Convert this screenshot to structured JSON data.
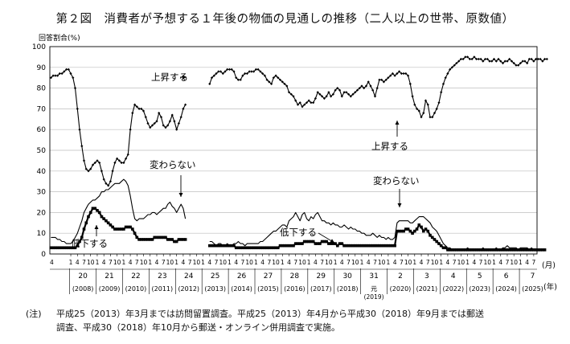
{
  "figure": {
    "title": "第２図　消費者が予想する１年後の物価の見通しの推移（二人以上の世帯、原数値）",
    "note_label": "(注)",
    "note_line1": "平成25（2013）年3月までは訪問留置調査。平成25（2013）年4月から平成30（2018）年9月までは郵送",
    "note_line2": "調査、平成30（2018）年10月から郵送・オンライン併用調査で実施。"
  },
  "colors": {
    "line": "#000000",
    "grid": "#bdbdbd",
    "axis": "#000000"
  },
  "chart_data": {
    "type": "line",
    "ylabel": "回答割合(%)",
    "ylim": [
      0,
      100
    ],
    "yticks": [
      0,
      10,
      20,
      30,
      40,
      50,
      60,
      70,
      80,
      90,
      100
    ],
    "x_unit": "(月)",
    "year_unit": "(年)",
    "month_ticks": [
      "1",
      "4",
      "7",
      "10"
    ],
    "grid": true,
    "x": {
      "start": "2007-04",
      "end": "2025-07",
      "step": "month"
    },
    "year_groups": [
      {
        "era": "20",
        "west": "(2008)"
      },
      {
        "era": "21",
        "west": "(2009)"
      },
      {
        "era": "22",
        "west": "(2010)"
      },
      {
        "era": "23",
        "west": "(2011)"
      },
      {
        "era": "24",
        "west": "(2012)"
      },
      {
        "era": "25",
        "west": "(2013)"
      },
      {
        "era": "26",
        "west": "(2014)"
      },
      {
        "era": "27",
        "west": "(2015)"
      },
      {
        "era": "28",
        "west": "(2016)"
      },
      {
        "era": "29",
        "west": "(2017)"
      },
      {
        "era": "30",
        "west": "(2018)"
      },
      {
        "era": "31",
        "west": "元",
        "west2": "(2019)"
      },
      {
        "era": "2",
        "west": "(2020)"
      },
      {
        "era": "3",
        "west": "(2021)"
      },
      {
        "era": "4",
        "west": "(2022)"
      },
      {
        "era": "5",
        "west": "(2023)"
      },
      {
        "era": "6",
        "west": "(2024)"
      },
      {
        "era": "7",
        "west": "(2025)"
      }
    ],
    "series": [
      {
        "name": "上昇する",
        "marker": "diamond-small",
        "segments": [
          {
            "start": "2007-04",
            "values": [
              85,
              86,
              86,
              86,
              87,
              87,
              88,
              89,
              89,
              87,
              85,
              80,
              70,
              60,
              52,
              45,
              41,
              40,
              41,
              43,
              44,
              45,
              44,
              40,
              36,
              34,
              33,
              35,
              40,
              44,
              46,
              45,
              44,
              44,
              46,
              48,
              60,
              68,
              72,
              71,
              70,
              70,
              69,
              66,
              63,
              61,
              62,
              63,
              64,
              68,
              66,
              62,
              61,
              62,
              64,
              67,
              64,
              60,
              63,
              66,
              70,
              72
            ]
          },
          {
            "start": "2013-04",
            "values": [
              82,
              85,
              86,
              87,
              88,
              88,
              87,
              88,
              89,
              89,
              89,
              88,
              85,
              84,
              84,
              86,
              87,
              87,
              88,
              88,
              88,
              89,
              89,
              88,
              87,
              86,
              84,
              83,
              82,
              85,
              86,
              85,
              84,
              83,
              82,
              81,
              78,
              77,
              76,
              74,
              72,
              73,
              71,
              72,
              73,
              74,
              73,
              73,
              75,
              78,
              77,
              76,
              75,
              76,
              78,
              76,
              77,
              79,
              80,
              79,
              76,
              78,
              78,
              77,
              76,
              77,
              78,
              79,
              80,
              81,
              80,
              81,
              83,
              81,
              79,
              76,
              80,
              84,
              84,
              83,
              84,
              85,
              86,
              87,
              86,
              87,
              88,
              87,
              87,
              87,
              86,
              82,
              76,
              72,
              70,
              69,
              66,
              68,
              74,
              72,
              66,
              66,
              68,
              70,
              73,
              78,
              82,
              85,
              87,
              89,
              90,
              91,
              92,
              93,
              94,
              94,
              95,
              95,
              94,
              94,
              95,
              94,
              94,
              94,
              93,
              94,
              94,
              93,
              93,
              94,
              93,
              94,
              93,
              92,
              93,
              93,
              94,
              93,
              92,
              91,
              91,
              92,
              93,
              93,
              92,
              94,
              94,
              93,
              94,
              94,
              94,
              93,
              94,
              94
            ]
          }
        ]
      },
      {
        "name": "変わらない",
        "marker": "none",
        "segments": [
          {
            "start": "2007-04",
            "values": [
              8,
              8,
              8,
              7,
              7,
              6,
              6,
              5,
              5,
              5,
              6,
              8,
              10,
              13,
              16,
              20,
              22,
              24,
              25,
              26,
              26,
              27,
              28,
              30,
              30,
              31,
              31,
              32,
              33,
              34,
              34,
              34,
              35,
              36,
              35,
              33,
              28,
              22,
              17,
              16,
              17,
              17,
              17,
              18,
              19,
              19,
              20,
              20,
              19,
              20,
              21,
              22,
              22,
              24,
              25,
              23,
              22,
              20,
              22,
              24,
              22,
              17
            ]
          },
          {
            "start": "2013-04",
            "values": [
              6,
              6,
              5,
              4,
              5,
              5,
              4,
              4,
              5,
              4,
              4,
              5,
              5,
              6,
              5,
              5,
              4,
              5,
              5,
              5,
              5,
              5,
              5,
              6,
              6,
              7,
              8,
              9,
              10,
              11,
              11,
              12,
              13,
              14,
              14,
              13,
              16,
              17,
              18,
              20,
              18,
              16,
              19,
              20,
              17,
              16,
              18,
              17,
              19,
              20,
              18,
              16,
              16,
              15,
              15,
              14,
              15,
              14,
              14,
              13,
              13,
              14,
              13,
              12,
              13,
              12,
              12,
              11,
              11,
              10,
              10,
              9,
              9,
              9,
              10,
              9,
              8,
              9,
              8,
              8,
              7,
              8,
              7,
              7,
              8,
              15,
              16,
              16,
              16,
              16,
              16,
              15,
              15,
              16,
              17,
              18,
              18,
              18,
              17,
              16,
              15,
              13,
              12,
              11,
              9,
              7,
              5,
              4,
              3,
              3,
              2,
              2,
              2,
              2,
              2,
              2,
              2,
              3,
              2,
              2,
              2,
              2,
              2,
              2,
              3,
              2,
              2,
              2,
              2,
              2,
              3,
              2,
              2,
              3,
              3,
              4,
              3,
              3,
              3,
              3,
              2,
              3,
              3,
              3,
              3,
              2,
              3,
              2,
              2,
              2,
              2,
              2,
              2
            ]
          }
        ]
      },
      {
        "name": "低下する",
        "marker": "square",
        "segments": [
          {
            "start": "2007-04",
            "values": [
              3,
              3,
              3,
              3,
              3,
              3,
              3,
              3,
              3,
              3,
              3,
              3,
              4,
              6,
              8,
              12,
              15,
              18,
              20,
              22,
              22,
              21,
              20,
              18,
              17,
              16,
              15,
              14,
              13,
              12,
              12,
              12,
              12,
              12,
              13,
              13,
              13,
              12,
              10,
              8,
              7,
              7,
              7,
              7,
              7,
              7,
              7,
              8,
              8,
              8,
              8,
              8,
              8,
              7,
              7,
              7,
              6,
              6,
              7,
              7,
              7,
              7
            ]
          },
          {
            "start": "2013-04",
            "values": [
              4,
              4,
              4,
              4,
              4,
              4,
              4,
              4,
              4,
              4,
              4,
              4,
              3,
              3,
              3,
              3,
              3,
              3,
              3,
              3,
              3,
              3,
              3,
              3,
              3,
              3,
              3,
              3,
              3,
              3,
              3,
              3,
              4,
              4,
              4,
              4,
              4,
              4,
              4,
              5,
              5,
              5,
              5,
              6,
              6,
              6,
              6,
              6,
              5,
              5,
              5,
              6,
              6,
              6,
              5,
              5,
              5,
              5,
              4,
              5,
              5,
              4,
              4,
              4,
              4,
              4,
              4,
              4,
              4,
              4,
              4,
              4,
              4,
              4,
              4,
              4,
              4,
              4,
              4,
              4,
              4,
              4,
              4,
              4,
              4,
              11,
              11,
              11,
              11,
              12,
              12,
              11,
              10,
              11,
              12,
              14,
              13,
              11,
              12,
              11,
              9,
              8,
              7,
              6,
              5,
              4,
              3,
              3,
              2,
              2,
              2,
              2,
              2,
              2,
              2,
              2,
              2,
              2,
              2,
              2,
              2,
              2,
              2,
              2,
              2,
              2,
              2,
              2,
              2,
              2,
              2,
              2,
              2,
              2,
              2,
              2,
              2,
              2,
              2,
              2,
              2,
              2,
              2,
              2,
              2,
              2,
              2,
              2,
              2,
              2,
              2,
              2,
              2
            ]
          }
        ]
      }
    ],
    "annotations": [
      {
        "text": "上昇する",
        "series": "上昇する"
      },
      {
        "text": "上昇する",
        "series": "上昇する"
      },
      {
        "text": "変わらない",
        "series": "変わらない"
      },
      {
        "text": "変わらない",
        "series": "変わらない"
      },
      {
        "text": "低下する",
        "series": "低下する"
      },
      {
        "text": "低下する",
        "series": "低下する"
      }
    ]
  }
}
